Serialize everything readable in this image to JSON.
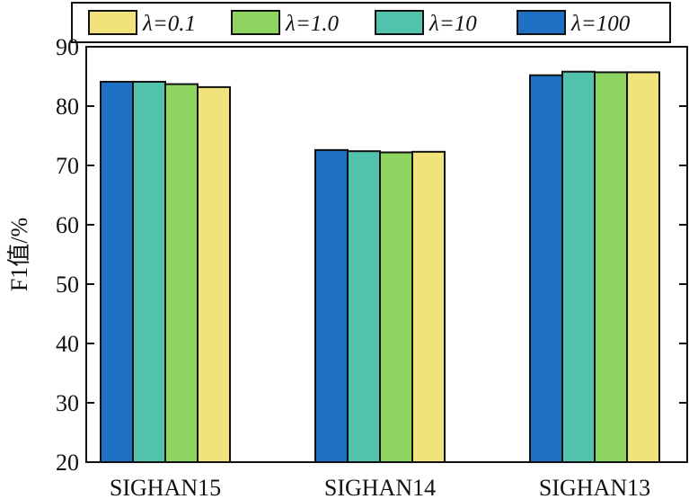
{
  "chart_data": {
    "type": "bar",
    "title": "",
    "xlabel": "",
    "ylabel": "F1值/%",
    "ylim": [
      20,
      90
    ],
    "yticks": [
      20,
      30,
      40,
      50,
      60,
      70,
      80,
      90
    ],
    "grid": false,
    "legend_position": "top",
    "categories": [
      "SIGHAN15",
      "SIGHAN14",
      "SIGHAN13"
    ],
    "legend_order": [
      "λ=0.1",
      "λ=1.0",
      "λ=10",
      "λ=100"
    ],
    "series": [
      {
        "name": "λ=100",
        "color": "#1f6fc5",
        "values": [
          84.1,
          72.6,
          85.2
        ]
      },
      {
        "name": "λ=10",
        "color": "#53c2ad",
        "values": [
          84.1,
          72.4,
          85.8
        ]
      },
      {
        "name": "λ=1.0",
        "color": "#8ed460",
        "values": [
          83.7,
          72.2,
          85.7
        ]
      },
      {
        "name": "λ=0.1",
        "color": "#f1e37c",
        "values": [
          83.2,
          72.3,
          85.7
        ]
      }
    ]
  }
}
